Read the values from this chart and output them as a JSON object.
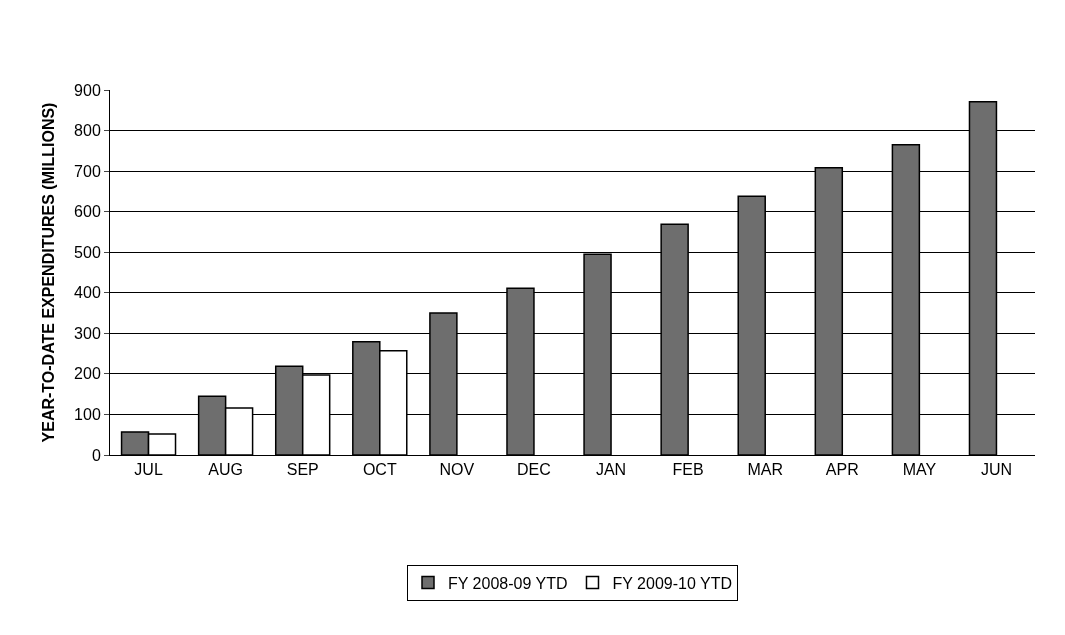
{
  "chart_data": {
    "type": "bar",
    "ylabel": "YEAR-TO-DATE EXPENDITURES (MILLIONS)",
    "categories": [
      "JUL",
      "AUG",
      "SEP",
      "OCT",
      "NOV",
      "DEC",
      "JAN",
      "FEB",
      "MAR",
      "APR",
      "MAY",
      "JUN"
    ],
    "series": [
      {
        "name": "FY 2008-09 YTD",
        "color": "#6e6e6e",
        "values": [
          57,
          145,
          219,
          279,
          350,
          411,
          495,
          569,
          638,
          708,
          765,
          871
        ]
      },
      {
        "name": "FY 2009-10 YTD",
        "color": "#ffffff",
        "values": [
          52,
          116,
          197,
          257,
          null,
          null,
          null,
          null,
          null,
          null,
          null,
          null
        ]
      }
    ],
    "ylim": [
      0,
      900
    ],
    "yticks": [
      0,
      100,
      200,
      300,
      400,
      500,
      600,
      700,
      800,
      900
    ],
    "grid": "y",
    "legend": "bottom"
  }
}
